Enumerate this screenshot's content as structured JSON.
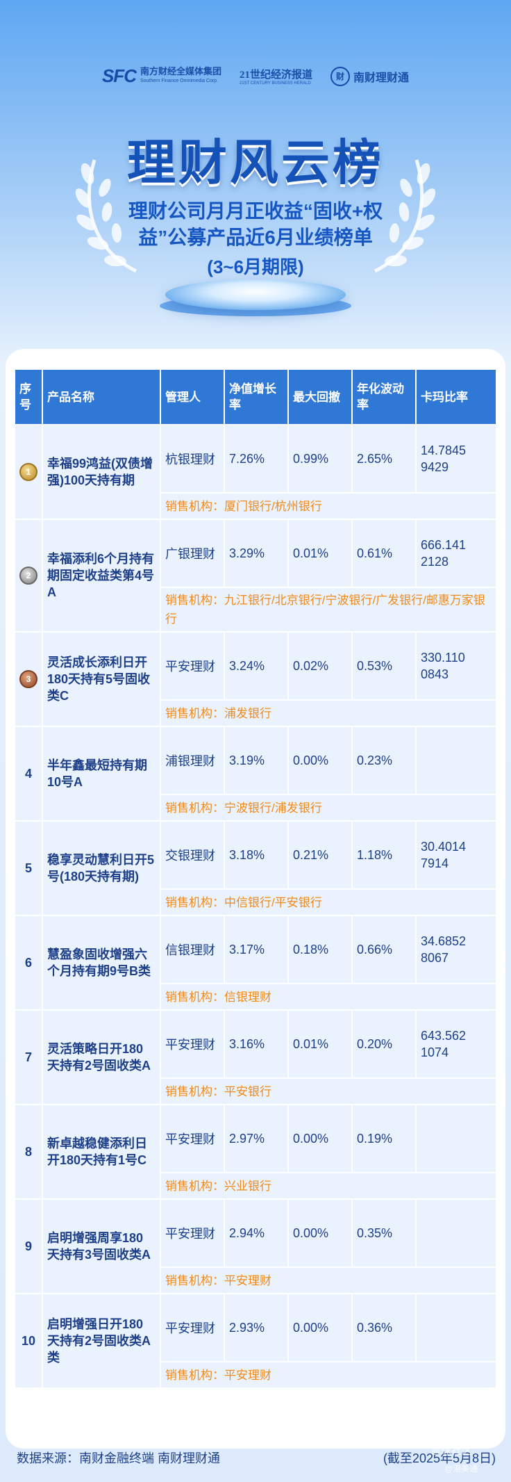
{
  "header": {
    "logo_sfc_mark": "SFC",
    "logo_sfc_name": "南方财经全媒体集团",
    "logo_sfc_sub": "Southern Finance Omnimedia Corp.",
    "logo_21_name": "21世纪经济报道",
    "logo_21_sub": "21ST CENTURY BUSINESS HERALD",
    "logo_nc_mark": "财",
    "logo_nc_name": "南财理财通",
    "title": "理财风云榜",
    "subtitle": "理财公司月月正收益“固收+权益”公募产品近6月业绩榜单",
    "subtitle2": "(3~6月期限)"
  },
  "table": {
    "columns": [
      "序号",
      "产品名称",
      "管理人",
      "净值增长率",
      "最大回撤",
      "年化波动率",
      "卡玛比率"
    ],
    "sales_prefix": "销售机构：",
    "rows": [
      {
        "rank": "1",
        "medal": "gold",
        "name": "幸福99鸿益(双债增强)100天持有期",
        "manager": "杭银理财",
        "growth": "7.26%",
        "drawdown": "0.99%",
        "volatility": "2.65%",
        "calmar": "14.7845 9429",
        "sales": "销售机构：厦门银行/杭州银行"
      },
      {
        "rank": "2",
        "medal": "silver",
        "name": "幸福添利6个月持有期固定收益类第4号A",
        "manager": "广银理财",
        "growth": "3.29%",
        "drawdown": "0.01%",
        "volatility": "0.61%",
        "calmar": "666.141 2128",
        "sales": "销售机构：九江银行/北京银行/宁波银行/广发银行/邮惠万家银行"
      },
      {
        "rank": "3",
        "medal": "bronze",
        "name": "灵活成长添利日开180天持有5号固收类C",
        "manager": "平安理财",
        "growth": "3.24%",
        "drawdown": "0.02%",
        "volatility": "0.53%",
        "calmar": "330.110 0843",
        "sales": "销售机构：浦发银行"
      },
      {
        "rank": "4",
        "medal": "",
        "name": "半年鑫最短持有期10号A",
        "manager": "浦银理财",
        "growth": "3.19%",
        "drawdown": "0.00%",
        "volatility": "0.23%",
        "calmar": "",
        "sales": "销售机构：宁波银行/浦发银行"
      },
      {
        "rank": "5",
        "medal": "",
        "name": "稳享灵动慧利日开5号(180天持有期)",
        "manager": "交银理财",
        "growth": "3.18%",
        "drawdown": "0.21%",
        "volatility": "1.18%",
        "calmar": "30.4014 7914",
        "sales": "销售机构：中信银行/平安银行"
      },
      {
        "rank": "6",
        "medal": "",
        "name": "慧盈象固收增强六个月持有期9号B类",
        "manager": "信银理财",
        "growth": "3.17%",
        "drawdown": "0.18%",
        "volatility": "0.66%",
        "calmar": "34.6852 8067",
        "sales": "销售机构：信银理财"
      },
      {
        "rank": "7",
        "medal": "",
        "name": "灵活策略日开180天持有2号固收类A",
        "manager": "平安理财",
        "growth": "3.16%",
        "drawdown": "0.01%",
        "volatility": "0.20%",
        "calmar": "643.562 1074",
        "sales": "销售机构：平安银行"
      },
      {
        "rank": "8",
        "medal": "",
        "name": "新卓越稳健添利日开180天持有1号C",
        "manager": "平安理财",
        "growth": "2.97%",
        "drawdown": "0.00%",
        "volatility": "0.19%",
        "calmar": "",
        "sales": "销售机构：兴业银行"
      },
      {
        "rank": "9",
        "medal": "",
        "name": "启明增强周享180天持有3号固收类A",
        "manager": "平安理财",
        "growth": "2.94%",
        "drawdown": "0.00%",
        "volatility": "0.35%",
        "calmar": "",
        "sales": "销售机构：平安理财"
      },
      {
        "rank": "10",
        "medal": "",
        "name": "启明增强日开180天持有2号固收类A类",
        "manager": "平安理财",
        "growth": "2.93%",
        "drawdown": "0.00%",
        "volatility": "0.36%",
        "calmar": "",
        "sales": "销售机构：平安理财"
      }
    ]
  },
  "footer": {
    "source": "数据来源：南财金融终端 南财理财通",
    "date": "(截至2025年5月8日)",
    "watermark": "雪球社区",
    "watermark2": "@港美通"
  },
  "colors": {
    "header_blue": "#2f78d6",
    "title_blue": "#1452b8",
    "sales_orange": "#f08a1a",
    "row_bg": "#eaf3fd"
  }
}
